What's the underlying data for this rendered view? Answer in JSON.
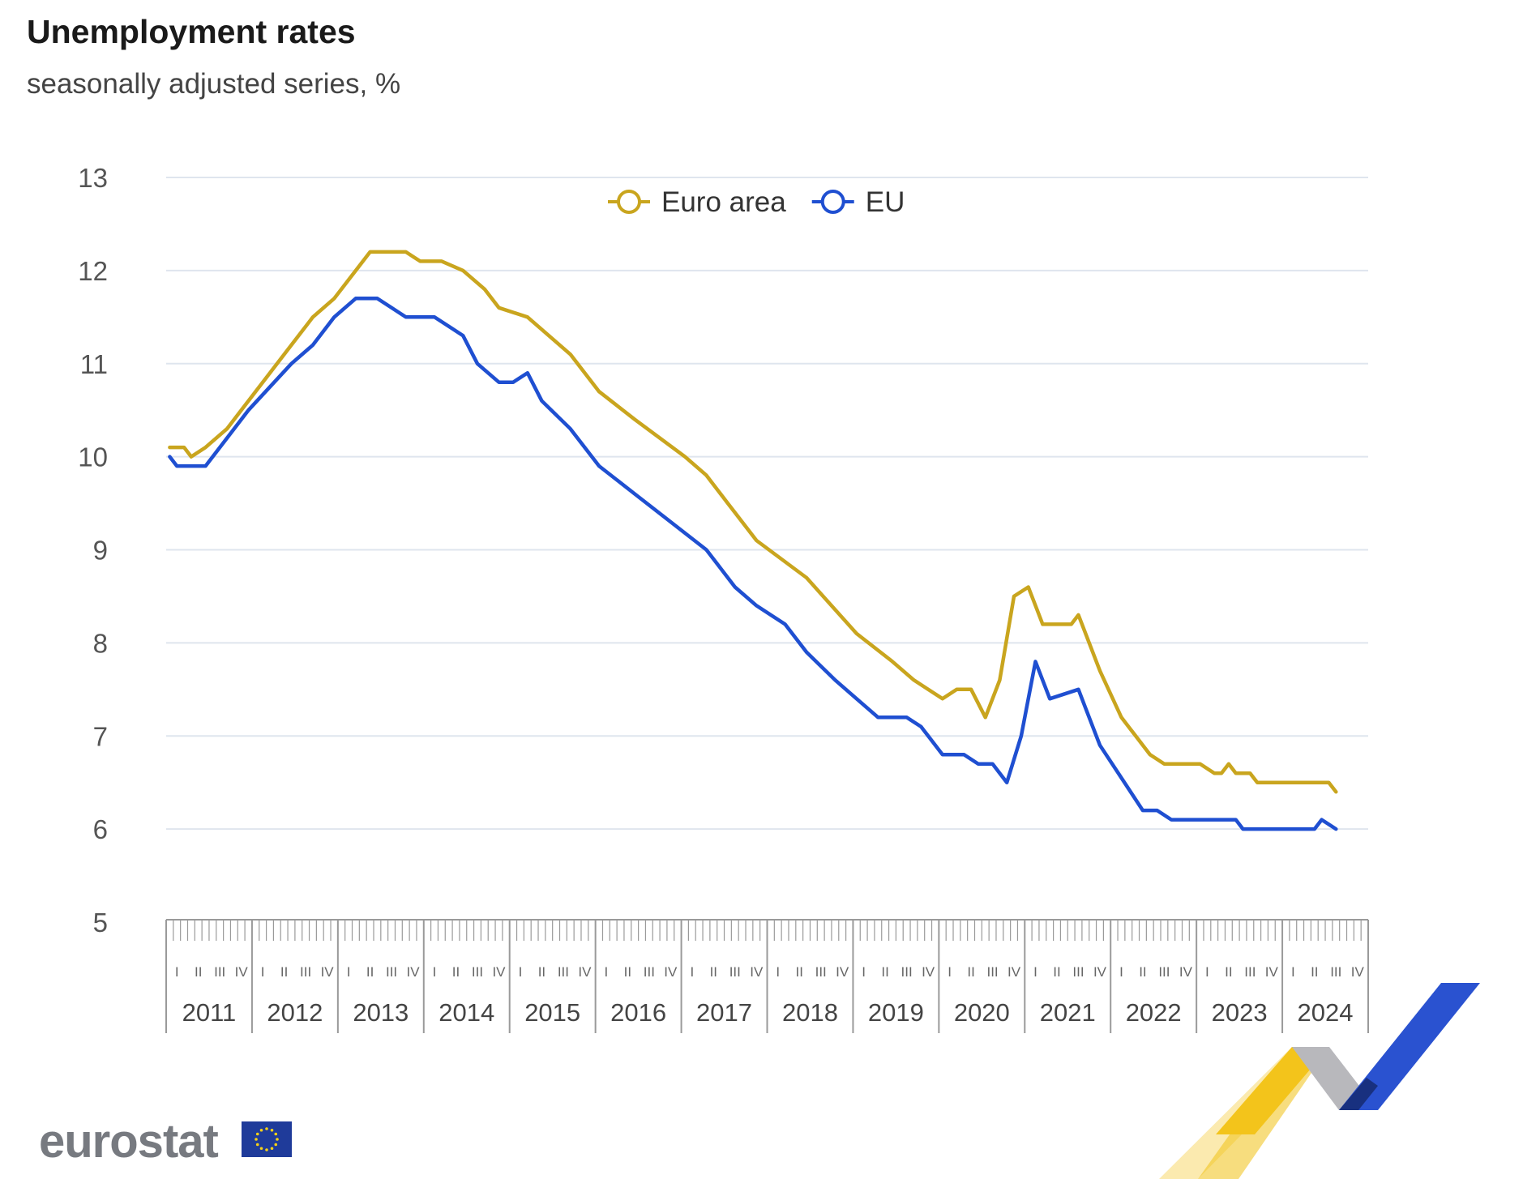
{
  "header": {
    "title": "Unemployment rates",
    "subtitle": "seasonally adjusted series, %"
  },
  "brand": {
    "logo_text": "eurostat",
    "flag_icon": "eu-flag-icon",
    "ribbon": "eurostat-ribbon-decoration"
  },
  "chart_data": {
    "type": "line",
    "title": "Unemployment rates",
    "subtitle": "seasonally adjusted series, %",
    "xlabel": "",
    "ylabel": "",
    "ylim": [
      5,
      13
    ],
    "yticks": [
      5,
      6,
      7,
      8,
      9,
      10,
      11,
      12,
      13
    ],
    "grid": true,
    "legend": "top-center",
    "x_start": "2011-01",
    "x_end": "2024-12",
    "quarter_labels": [
      "I",
      "II",
      "III",
      "IV"
    ],
    "year_labels": [
      "2011",
      "2012",
      "2013",
      "2014",
      "2015",
      "2016",
      "2017",
      "2018",
      "2019",
      "2020",
      "2021",
      "2022",
      "2023",
      "2024"
    ],
    "series": [
      {
        "name": "Euro area",
        "color": "#c9a51e",
        "anchors": [
          [
            "2011-01",
            10.1
          ],
          [
            "2011-03",
            10.1
          ],
          [
            "2011-04",
            10.0
          ],
          [
            "2011-06",
            10.1
          ],
          [
            "2011-09",
            10.3
          ],
          [
            "2011-12",
            10.6
          ],
          [
            "2012-06",
            11.2
          ],
          [
            "2012-09",
            11.5
          ],
          [
            "2012-12",
            11.7
          ],
          [
            "2013-03",
            12.0
          ],
          [
            "2013-05",
            12.2
          ],
          [
            "2013-10",
            12.2
          ],
          [
            "2013-12",
            12.1
          ],
          [
            "2014-03",
            12.1
          ],
          [
            "2014-06",
            12.0
          ],
          [
            "2014-09",
            11.8
          ],
          [
            "2014-11",
            11.6
          ],
          [
            "2015-03",
            11.5
          ],
          [
            "2015-09",
            11.1
          ],
          [
            "2016-01",
            10.7
          ],
          [
            "2016-06",
            10.4
          ],
          [
            "2017-01",
            10.0
          ],
          [
            "2017-04",
            9.8
          ],
          [
            "2017-07",
            9.5
          ],
          [
            "2017-11",
            9.1
          ],
          [
            "2018-06",
            8.7
          ],
          [
            "2019-01",
            8.1
          ],
          [
            "2019-06",
            7.8
          ],
          [
            "2019-09",
            7.6
          ],
          [
            "2019-11",
            7.5
          ],
          [
            "2020-01",
            7.4
          ],
          [
            "2020-03",
            7.5
          ],
          [
            "2020-05",
            7.5
          ],
          [
            "2020-07",
            7.2
          ],
          [
            "2020-09",
            7.6
          ],
          [
            "2020-11",
            8.5
          ],
          [
            "2021-01",
            8.6
          ],
          [
            "2021-03",
            8.2
          ],
          [
            "2021-07",
            8.2
          ],
          [
            "2021-08",
            8.3
          ],
          [
            "2021-11",
            7.7
          ],
          [
            "2022-02",
            7.2
          ],
          [
            "2022-06",
            6.8
          ],
          [
            "2022-08",
            6.7
          ],
          [
            "2023-01",
            6.7
          ],
          [
            "2023-03",
            6.6
          ],
          [
            "2023-04",
            6.6
          ],
          [
            "2023-05",
            6.7
          ],
          [
            "2023-06",
            6.6
          ],
          [
            "2023-08",
            6.6
          ],
          [
            "2023-09",
            6.5
          ],
          [
            "2024-07",
            6.5
          ],
          [
            "2024-08",
            6.4
          ]
        ]
      },
      {
        "name": "EU",
        "color": "#1f4fd1",
        "anchors": [
          [
            "2011-01",
            10.0
          ],
          [
            "2011-02",
            9.9
          ],
          [
            "2011-06",
            9.9
          ],
          [
            "2011-12",
            10.5
          ],
          [
            "2012-06",
            11.0
          ],
          [
            "2012-09",
            11.2
          ],
          [
            "2012-12",
            11.5
          ],
          [
            "2013-03",
            11.7
          ],
          [
            "2013-06",
            11.7
          ],
          [
            "2013-08",
            11.6
          ],
          [
            "2013-10",
            11.5
          ],
          [
            "2014-02",
            11.5
          ],
          [
            "2014-04",
            11.4
          ],
          [
            "2014-06",
            11.3
          ],
          [
            "2014-08",
            11.0
          ],
          [
            "2014-11",
            10.8
          ],
          [
            "2015-01",
            10.8
          ],
          [
            "2015-03",
            10.9
          ],
          [
            "2015-05",
            10.6
          ],
          [
            "2015-09",
            10.3
          ],
          [
            "2016-01",
            9.9
          ],
          [
            "2016-06",
            9.6
          ],
          [
            "2016-11",
            9.3
          ],
          [
            "2017-04",
            9.0
          ],
          [
            "2017-08",
            8.6
          ],
          [
            "2017-11",
            8.4
          ],
          [
            "2018-03",
            8.2
          ],
          [
            "2018-06",
            7.9
          ],
          [
            "2018-10",
            7.6
          ],
          [
            "2019-01",
            7.4
          ],
          [
            "2019-04",
            7.2
          ],
          [
            "2019-08",
            7.2
          ],
          [
            "2019-10",
            7.1
          ],
          [
            "2020-01",
            6.8
          ],
          [
            "2020-04",
            6.8
          ],
          [
            "2020-06",
            6.7
          ],
          [
            "2020-08",
            6.7
          ],
          [
            "2020-10",
            6.5
          ],
          [
            "2020-12",
            7.0
          ],
          [
            "2021-02",
            7.8
          ],
          [
            "2021-04",
            7.4
          ],
          [
            "2021-08",
            7.5
          ],
          [
            "2021-09",
            7.3
          ],
          [
            "2021-11",
            6.9
          ],
          [
            "2022-05",
            6.2
          ],
          [
            "2022-07",
            6.2
          ],
          [
            "2022-09",
            6.1
          ],
          [
            "2023-06",
            6.1
          ],
          [
            "2023-07",
            6.0
          ],
          [
            "2024-05",
            6.0
          ],
          [
            "2024-06",
            6.1
          ],
          [
            "2024-08",
            6.0
          ]
        ]
      }
    ]
  }
}
